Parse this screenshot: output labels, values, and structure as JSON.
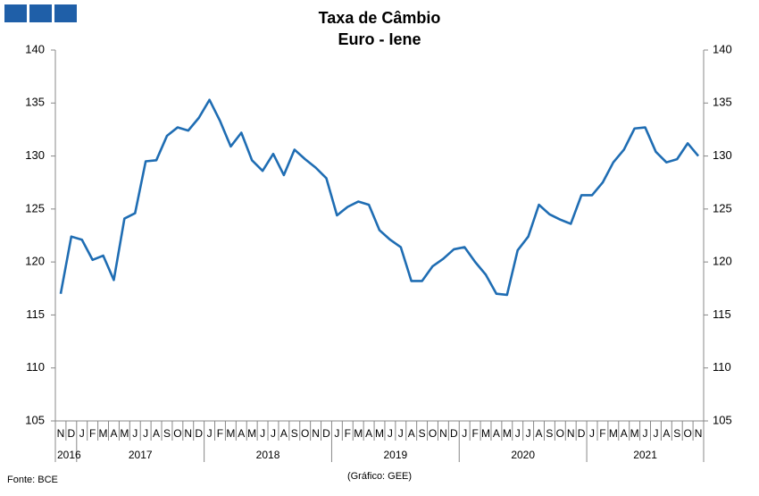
{
  "chart_data": {
    "type": "line",
    "title": "Taxa de Câmbio",
    "subtitle": "Euro - Iene",
    "categories": [
      "N",
      "D",
      "J",
      "F",
      "M",
      "A",
      "M",
      "J",
      "J",
      "A",
      "S",
      "O",
      "N",
      "D",
      "J",
      "F",
      "M",
      "A",
      "M",
      "J",
      "J",
      "A",
      "S",
      "O",
      "N",
      "D",
      "J",
      "F",
      "M",
      "A",
      "M",
      "J",
      "J",
      "A",
      "S",
      "O",
      "N",
      "D",
      "J",
      "F",
      "M",
      "A",
      "M",
      "J",
      "J",
      "A",
      "S",
      "O",
      "N",
      "D",
      "J",
      "F",
      "M",
      "A",
      "M",
      "J",
      "J",
      "A",
      "S",
      "O",
      "N"
    ],
    "year_labels": [
      "2016",
      "2017",
      "2018",
      "2019",
      "2020",
      "2021"
    ],
    "series": [
      {
        "color": "#1f6db3",
        "values": [
          117.0,
          122.4,
          122.1,
          120.2,
          120.6,
          118.3,
          124.1,
          124.6,
          129.5,
          129.6,
          131.9,
          132.7,
          132.4,
          133.6,
          135.3,
          133.3,
          130.9,
          132.2,
          129.6,
          128.6,
          130.2,
          128.2,
          130.6,
          129.7,
          128.9,
          127.9,
          124.4,
          125.2,
          125.7,
          125.4,
          123.0,
          122.1,
          121.4,
          118.2,
          118.2,
          119.6,
          120.3,
          121.2,
          121.4,
          120.0,
          118.8,
          117.0,
          116.9,
          121.1,
          122.4,
          125.4,
          124.5,
          124.0,
          123.6,
          126.3,
          126.3,
          127.5,
          129.4,
          130.6,
          132.6,
          132.7,
          130.4,
          129.4,
          129.7,
          131.2,
          130.0
        ]
      }
    ],
    "ylim": [
      105,
      140
    ],
    "yticks": [
      105,
      110,
      115,
      120,
      125,
      130,
      135,
      140
    ],
    "source": "Fonte: BCE",
    "credit": "(Gráfico: GEE)"
  }
}
